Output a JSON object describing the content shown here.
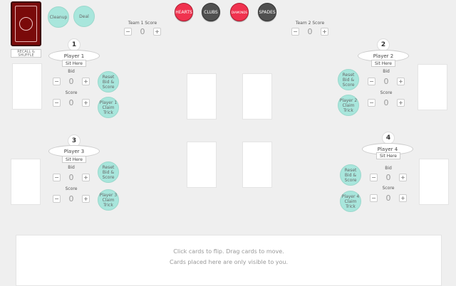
{
  "deck": {
    "recall_label": "RECALL & SHUFFLE"
  },
  "controls": {
    "cleanup": "Cleanup",
    "deal": "Deal"
  },
  "suits": [
    {
      "label": "HEARTS",
      "color": "#f0324f"
    },
    {
      "label": "CLUBS",
      "color": "#505050"
    },
    {
      "label": "DIAMONDS",
      "color": "#f0324f"
    },
    {
      "label": "SPADES",
      "color": "#505050"
    }
  ],
  "teams": [
    {
      "label": "Team 1 Score",
      "value": "0"
    },
    {
      "label": "Team 2 Score",
      "value": "0"
    }
  ],
  "stepper": {
    "minus": "−",
    "plus": "+"
  },
  "players": [
    {
      "number": "1",
      "name": "Player 1",
      "sit": "Sit Here",
      "bid_label": "Bid",
      "bid": "0",
      "score_label": "Score",
      "score": "0",
      "reset": "Reset Bid & Score",
      "claim": "Player 1 Claim Trick"
    },
    {
      "number": "2",
      "name": "Player 2",
      "sit": "Sit Here",
      "bid_label": "Bid",
      "bid": "0",
      "score_label": "Score",
      "score": "0",
      "reset": "Reset Bid & Score",
      "claim": "Player 2 Claim Trick"
    },
    {
      "number": "3",
      "name": "Player 3",
      "sit": "Sit Here",
      "bid_label": "Bid",
      "bid": "0",
      "score_label": "Score",
      "score": "0",
      "reset": "Reset Bid & Score",
      "claim": "Player 3 Claim Trick"
    },
    {
      "number": "4",
      "name": "Player 4",
      "sit": "Sit Here",
      "bid_label": "Bid",
      "bid": "0",
      "score_label": "Score",
      "score": "0",
      "reset": "Reset Bid & Score",
      "claim": "Player 4 Claim Trick"
    }
  ],
  "hand": {
    "line1": "Click cards to flip.   Drag cards to move.",
    "line2": "Cards placed here are only visible to you."
  }
}
